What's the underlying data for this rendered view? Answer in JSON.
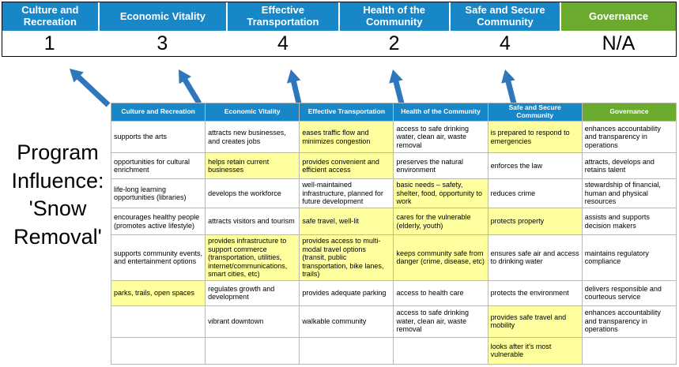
{
  "title": "Program Influence: 'Snow Removal'",
  "colors": {
    "header_blue": "#1787c8",
    "header_green": "#6aab2e",
    "highlight_yellow": "#ffffa0",
    "arrow_blue": "#2e77bc"
  },
  "pillars": [
    {
      "name": "Culture and Recreation",
      "score": "1",
      "type": "blue"
    },
    {
      "name": "Economic Vitality",
      "score": "3",
      "type": "blue"
    },
    {
      "name": "Effective Transportation",
      "score": "4",
      "type": "blue"
    },
    {
      "name": "Health of the Community",
      "score": "2",
      "type": "blue"
    },
    {
      "name": "Safe and Secure Community",
      "score": "4",
      "type": "blue"
    },
    {
      "name": "Governance",
      "score": "N/A",
      "type": "green"
    }
  ],
  "matrix": {
    "headers": [
      {
        "label": "Culture and Recreation",
        "type": "blue"
      },
      {
        "label": "Economic Vitality",
        "type": "blue"
      },
      {
        "label": "Effective Transportation",
        "type": "blue"
      },
      {
        "label": "Health of the Community",
        "type": "blue"
      },
      {
        "label": "Safe and Secure Community",
        "type": "blue"
      },
      {
        "label": "Governance",
        "type": "green"
      }
    ],
    "rows": [
      [
        {
          "text": "supports the arts",
          "hl": false
        },
        {
          "text": "attracts new businesses, and creates jobs",
          "hl": false
        },
        {
          "text": "eases traffic flow and minimizes congestion",
          "hl": true
        },
        {
          "text": "access to safe drinking water, clean air, waste removal",
          "hl": false
        },
        {
          "text": "is prepared to respond to emergencies",
          "hl": true
        },
        {
          "text": "enhances accountability and transparency in operations",
          "hl": false
        }
      ],
      [
        {
          "text": "opportunities for cultural enrichment",
          "hl": false
        },
        {
          "text": "helps retain current businesses",
          "hl": true
        },
        {
          "text": "provides convenient and efficient access",
          "hl": true
        },
        {
          "text": "preserves the natural environment",
          "hl": false
        },
        {
          "text": "enforces the law",
          "hl": false
        },
        {
          "text": "attracts, develops and retains talent",
          "hl": false
        }
      ],
      [
        {
          "text": "life-long learning opportunities (libraries)",
          "hl": false
        },
        {
          "text": "develops the workforce",
          "hl": false
        },
        {
          "text": "well-maintained infrastructure, planned for future development",
          "hl": false
        },
        {
          "text": "basic needs – safety, shelter, food, opportunity to work",
          "hl": true
        },
        {
          "text": "reduces crime",
          "hl": false
        },
        {
          "text": "stewardship of financial, human and physical resources",
          "hl": false
        }
      ],
      [
        {
          "text": "encourages healthy people (promotes active lifestyle)",
          "hl": false
        },
        {
          "text": "attracts visitors and tourism",
          "hl": false
        },
        {
          "text": "safe travel, well-lit",
          "hl": true
        },
        {
          "text": "cares for the vulnerable (elderly, youth)",
          "hl": true
        },
        {
          "text": "protects property",
          "hl": true
        },
        {
          "text": "assists and supports decision makers",
          "hl": false
        }
      ],
      [
        {
          "text": "supports community events, and entertainment options",
          "hl": false
        },
        {
          "text": "provides infrastructure to support commerce (transportation, utilities, internet/communications, smart cities, etc)",
          "hl": true
        },
        {
          "text": "provides access to multi-modal travel options (transit, public transportation, bike lanes, trails)",
          "hl": true
        },
        {
          "text": "keeps community safe from danger (crime, disease, etc)",
          "hl": true
        },
        {
          "text": "ensures safe air and access to drinking water",
          "hl": false
        },
        {
          "text": "maintains regulatory compliance",
          "hl": false
        }
      ],
      [
        {
          "text": "parks, trails, open spaces",
          "hl": true
        },
        {
          "text": "regulates growth and development",
          "hl": false
        },
        {
          "text": "provides adequate parking",
          "hl": false
        },
        {
          "text": "access to health care",
          "hl": false
        },
        {
          "text": "protects the environment",
          "hl": false
        },
        {
          "text": "delivers responsible and courteous service",
          "hl": false
        }
      ],
      [
        {
          "text": "",
          "hl": false
        },
        {
          "text": "vibrant downtown",
          "hl": false
        },
        {
          "text": "walkable community",
          "hl": false
        },
        {
          "text": "access to safe drinking water, clean air, waste removal",
          "hl": false
        },
        {
          "text": "provides safe travel and mobility",
          "hl": true
        },
        {
          "text": "enhances accountability and transparency in operations",
          "hl": false
        }
      ],
      [
        {
          "text": "",
          "hl": false
        },
        {
          "text": "",
          "hl": false
        },
        {
          "text": "",
          "hl": false
        },
        {
          "text": "",
          "hl": false
        },
        {
          "text": "looks after it's most vulnerable",
          "hl": true
        },
        {
          "text": "",
          "hl": false
        }
      ]
    ]
  }
}
